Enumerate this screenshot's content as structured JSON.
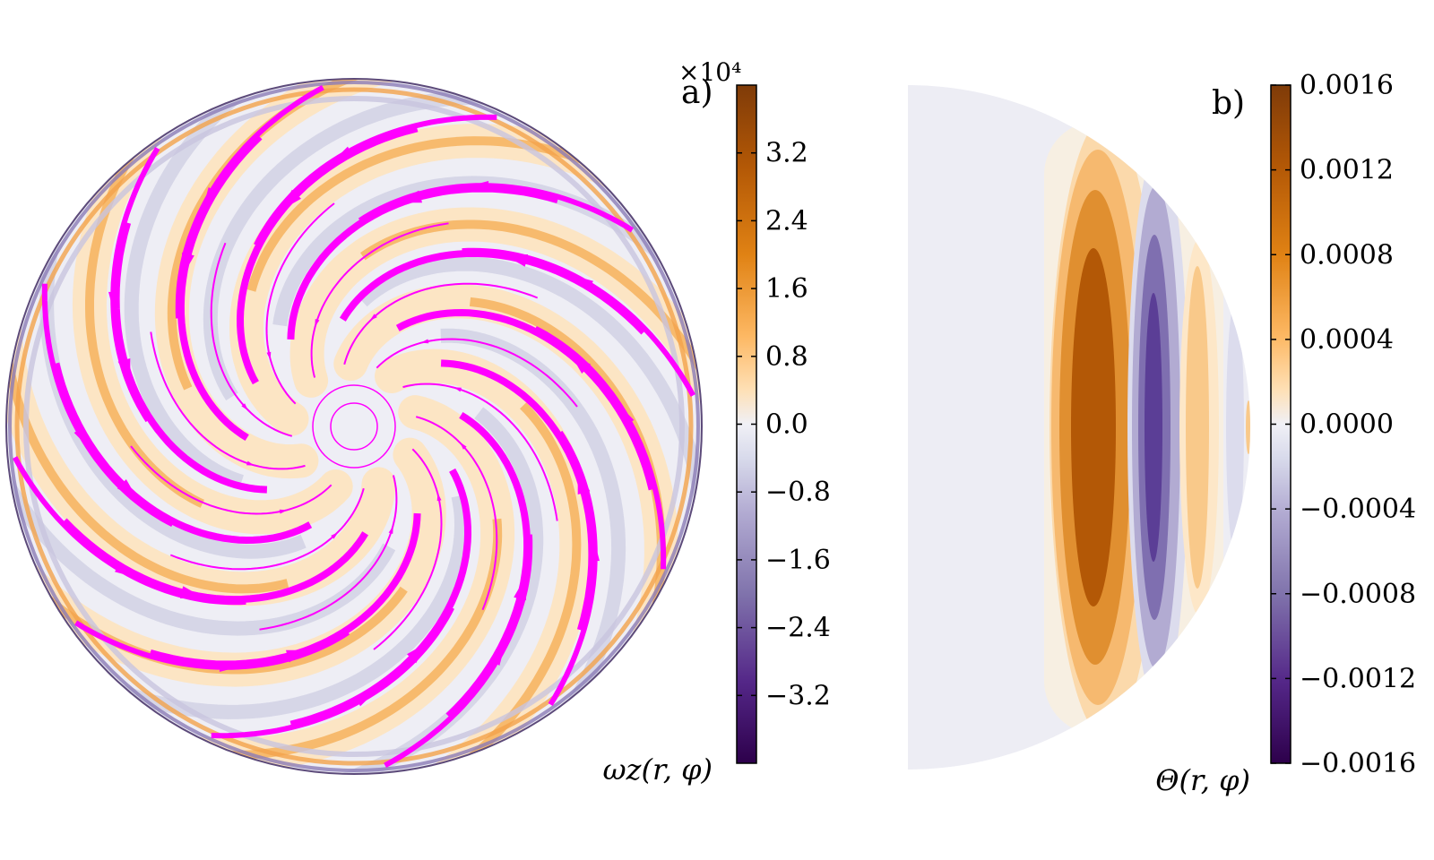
{
  "chart_data": [
    {
      "type": "heatmap",
      "panel_label": "a)",
      "colorbar": {
        "label": "ωz(r, φ)",
        "multiplier": "×10⁴",
        "ticks": [
          "3.2",
          "2.4",
          "1.6",
          "0.8",
          "0.0",
          "−0.8",
          "−1.6",
          "−2.4",
          "−3.2"
        ],
        "tick_values": [
          3.2,
          2.4,
          1.6,
          0.8,
          0.0,
          -0.8,
          -1.6,
          -2.4,
          -3.2
        ],
        "range": [
          -4.0,
          4.0
        ]
      },
      "colormap": [
        "#2d004b",
        "#542788",
        "#8073ac",
        "#b2abd2",
        "#d8daeb",
        "#f0f0f6",
        "#fee0b6",
        "#fdb863",
        "#e08214",
        "#b35806",
        "#7f3b08"
      ],
      "overlay": "streamlines",
      "streamline_color": "#ff00ff"
    },
    {
      "type": "heatmap",
      "panel_label": "b)",
      "colorbar": {
        "label": "Θ(r, φ)",
        "ticks": [
          "0.0016",
          "0.0012",
          "0.0008",
          "0.0004",
          "0.0000",
          "−0.0004",
          "−0.0008",
          "−0.0012",
          "−0.0016"
        ],
        "tick_values": [
          0.0016,
          0.0012,
          0.0008,
          0.0004,
          0.0,
          -0.0004,
          -0.0008,
          -0.0012,
          -0.0016
        ],
        "range": [
          -0.0016,
          0.0016
        ]
      },
      "colormap": [
        "#2d004b",
        "#542788",
        "#8073ac",
        "#b2abd2",
        "#d8daeb",
        "#f0f0f6",
        "#fee0b6",
        "#fdb863",
        "#e08214",
        "#b35806",
        "#7f3b08"
      ],
      "bands": [
        {
          "color": "#f7efe2",
          "level": "pale"
        },
        {
          "color": "#fbd9ab",
          "level": "0.0002"
        },
        {
          "color": "#f6b96f",
          "level": "0.0006"
        },
        {
          "color": "#e08f30",
          "level": "0.0010"
        },
        {
          "color": "#b35806",
          "level": "0.0014"
        },
        {
          "color": "#b2abd2",
          "level": "-0.0004"
        },
        {
          "color": "#7f6fb0",
          "level": "-0.0008"
        },
        {
          "color": "#5b3e96",
          "level": "-0.0012"
        }
      ]
    }
  ]
}
